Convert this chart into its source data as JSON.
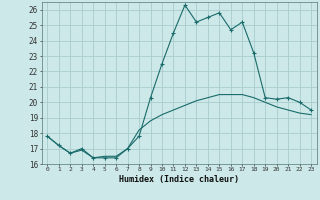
{
  "xlabel": "Humidex (Indice chaleur)",
  "bg_color": "#cce8e8",
  "grid_color": "#aacccc",
  "line_color": "#1a6b6b",
  "xlim": [
    -0.5,
    23.5
  ],
  "ylim": [
    16,
    26.5
  ],
  "yticks": [
    16,
    17,
    18,
    19,
    20,
    21,
    22,
    23,
    24,
    25,
    26
  ],
  "xticks": [
    0,
    1,
    2,
    3,
    4,
    5,
    6,
    7,
    8,
    9,
    10,
    11,
    12,
    13,
    14,
    15,
    16,
    17,
    18,
    19,
    20,
    21,
    22,
    23
  ],
  "series1_x": [
    0,
    1,
    2,
    3,
    4,
    5,
    6,
    7,
    8,
    9,
    10,
    11,
    12,
    13,
    14,
    15,
    16,
    17,
    18,
    19,
    20,
    21,
    22,
    23
  ],
  "series1_y": [
    17.8,
    17.2,
    16.7,
    17.0,
    16.4,
    16.4,
    16.4,
    17.0,
    17.8,
    20.3,
    22.5,
    24.5,
    26.3,
    25.2,
    25.5,
    25.8,
    24.7,
    25.2,
    23.2,
    20.3,
    20.2,
    20.3,
    20.0,
    19.5
  ],
  "series2_x": [
    0,
    1,
    2,
    3,
    4,
    5,
    6,
    7,
    8,
    9,
    10,
    11,
    12,
    13,
    14,
    15,
    16,
    17,
    18,
    19,
    20,
    21,
    22,
    23
  ],
  "series2_y": [
    17.8,
    17.2,
    16.7,
    16.9,
    16.4,
    16.5,
    16.5,
    17.0,
    18.2,
    18.8,
    19.2,
    19.5,
    19.8,
    20.1,
    20.3,
    20.5,
    20.5,
    20.5,
    20.3,
    20.0,
    19.7,
    19.5,
    19.3,
    19.2
  ]
}
